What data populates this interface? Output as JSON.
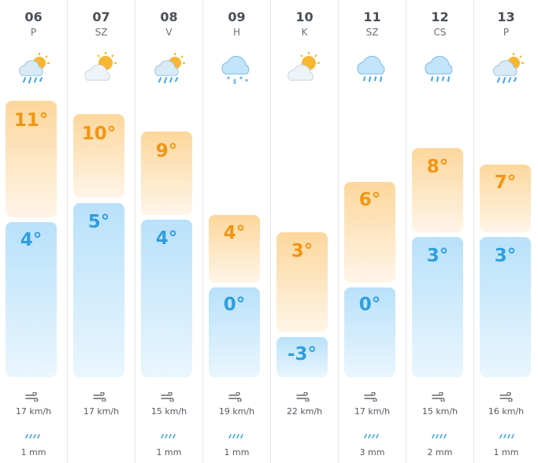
{
  "colors": {
    "max_text": "#f29513",
    "min_text": "#2f9ee0",
    "max_bar": "#fcd79c",
    "min_bar": "#b9e1fa",
    "rain_icon": "#3ea6e8"
  },
  "days": [
    {
      "num": "06",
      "name": "P",
      "icon": "cloud-sun-rain-icon",
      "max": "11°",
      "min": "4°",
      "wind": "17 km/h",
      "rain": "1 mm"
    },
    {
      "num": "07",
      "name": "SZ",
      "icon": "sun-cloud-icon",
      "max": "10°",
      "min": "5°",
      "wind": "17 km/h",
      "rain": ""
    },
    {
      "num": "08",
      "name": "V",
      "icon": "cloud-sun-rain-icon",
      "max": "9°",
      "min": "4°",
      "wind": "15 km/h",
      "rain": "1 mm"
    },
    {
      "num": "09",
      "name": "H",
      "icon": "cloud-snow-icon",
      "max": "4°",
      "min": "0°",
      "wind": "19 km/h",
      "rain": "1 mm"
    },
    {
      "num": "10",
      "name": "K",
      "icon": "sun-cloud-icon",
      "max": "3°",
      "min": "-3°",
      "wind": "22 km/h",
      "rain": ""
    },
    {
      "num": "11",
      "name": "SZ",
      "icon": "cloud-rain-icon",
      "max": "6°",
      "min": "0°",
      "wind": "17 km/h",
      "rain": "3 mm"
    },
    {
      "num": "12",
      "name": "CS",
      "icon": "cloud-rain-icon",
      "max": "8°",
      "min": "3°",
      "wind": "15 km/h",
      "rain": "2 mm"
    },
    {
      "num": "13",
      "name": "P",
      "icon": "cloud-sun-rain-icon",
      "max": "7°",
      "min": "3°",
      "wind": "16 km/h",
      "rain": "1 mm"
    }
  ]
}
